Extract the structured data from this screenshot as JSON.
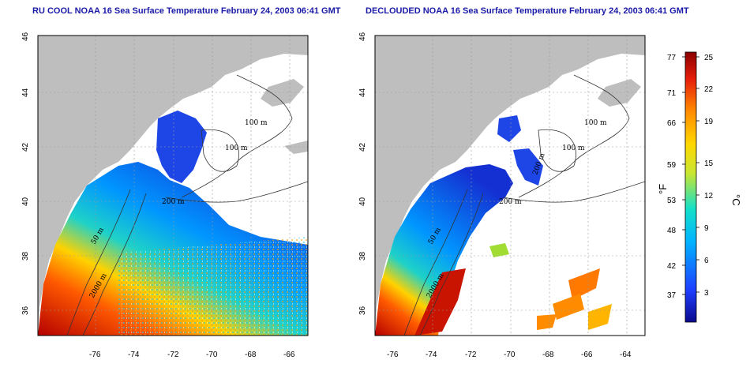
{
  "panels": [
    {
      "title": "RU COOL NOAA 16 Sea Surface Temperature February 24, 2003 06:41 GMT",
      "contours": [
        "100 m",
        "100 m",
        "200 m",
        "50 m",
        "2000 m"
      ]
    },
    {
      "title": "DECLOUDED NOAA 16 Sea Surface Temperature February 24, 2003 06:41 GMT",
      "contours": [
        "100 m",
        "100 m",
        "200 m",
        "200 m",
        "50 m",
        "2000 m"
      ]
    }
  ],
  "map": {
    "lon_ticks": [
      "-76",
      "-74",
      "-72",
      "-70",
      "-68",
      "-66",
      "-64"
    ],
    "lat_ticks": [
      "46",
      "44",
      "42",
      "40",
      "38",
      "36"
    ]
  },
  "colorbar": {
    "fahrenheit_ticks": [
      "77",
      "71",
      "66",
      "59",
      "53",
      "48",
      "42",
      "37"
    ],
    "celsius_ticks": [
      "25",
      "22",
      "19",
      "15",
      "12",
      "9",
      "6",
      "3"
    ],
    "fahrenheit_unit": "°F",
    "celsius_unit": "°C",
    "colors": [
      "#0a0a8c",
      "#1e40ff",
      "#00b4ff",
      "#14e0c8",
      "#c8e632",
      "#ffd700",
      "#ff8c00",
      "#e61e0a",
      "#8b0000"
    ]
  }
}
